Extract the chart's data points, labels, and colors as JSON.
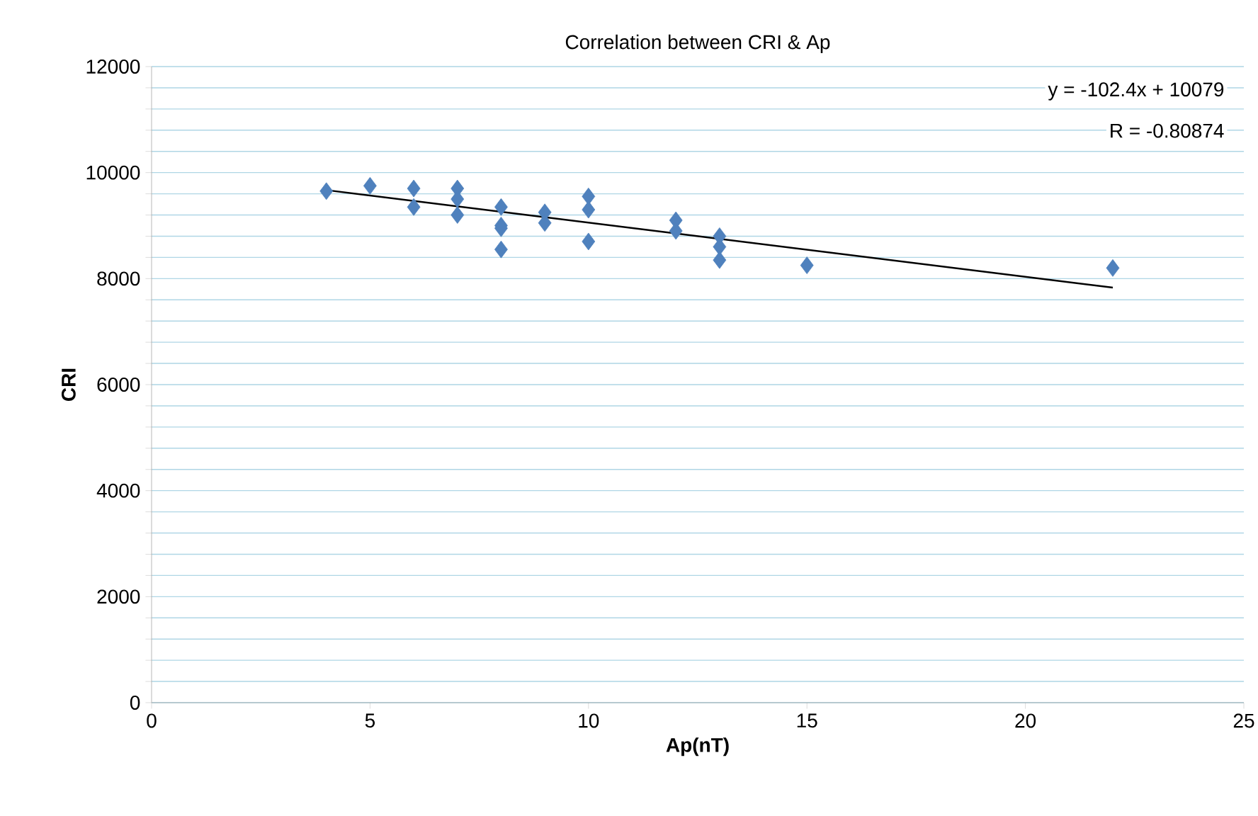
{
  "chart_data": {
    "type": "scatter",
    "title": "Correlation between CRI & Ap",
    "xlabel": "Ap(nT)",
    "ylabel": "CRI",
    "xlim": [
      0,
      25
    ],
    "xticks": [
      0,
      5,
      10,
      15,
      20,
      25
    ],
    "ylim": [
      0,
      12000
    ],
    "yticks": [
      0,
      {
        "value": 400,
        "label": null
      },
      {
        "value": 800,
        "label": null
      },
      {
        "value": 1200,
        "label": null
      },
      {
        "value": 1600,
        "label": null
      },
      2000,
      {
        "value": 2400,
        "label": null
      },
      {
        "value": 2800,
        "label": null
      },
      {
        "value": 3200,
        "label": null
      },
      {
        "value": 3600,
        "label": null
      },
      4000,
      {
        "value": 4400,
        "label": null
      },
      {
        "value": 4800,
        "label": null
      },
      {
        "value": 5200,
        "label": null
      },
      {
        "value": 5600,
        "label": null
      },
      6000,
      {
        "value": 6400,
        "label": null
      },
      {
        "value": 6800,
        "label": null
      },
      {
        "value": 7200,
        "label": null
      },
      {
        "value": 7600,
        "label": null
      },
      8000,
      {
        "value": 8400,
        "label": null
      },
      {
        "value": 8800,
        "label": null
      },
      {
        "value": 9200,
        "label": null
      },
      {
        "value": 9600,
        "label": null
      },
      10000,
      {
        "value": 10400,
        "label": null
      },
      {
        "value": 10800,
        "label": null
      },
      {
        "value": 11200,
        "label": null
      },
      {
        "value": 11600,
        "label": null
      },
      12000
    ],
    "grid": "y",
    "series": [
      {
        "color": "#4f81bd",
        "marker": "diamond",
        "x": [
          4,
          5,
          6,
          6,
          7,
          7,
          7,
          8,
          8,
          8,
          8,
          9,
          9,
          10,
          10,
          10,
          12,
          12,
          13,
          13,
          13,
          15,
          22
        ],
        "values": [
          9650,
          9750,
          9700,
          9350,
          9700,
          9500,
          9200,
          9350,
          9000,
          8950,
          8550,
          9250,
          9050,
          9550,
          9300,
          8700,
          9100,
          8900,
          8800,
          8600,
          8350,
          8250,
          8200
        ]
      },
      {
        "type": "line",
        "color": "#000000",
        "x": [
          4,
          22
        ],
        "values": [
          9670,
          7830
        ]
      }
    ],
    "annotations": [
      "y = -102.4x + 10079",
      "R = -0.80874"
    ]
  }
}
